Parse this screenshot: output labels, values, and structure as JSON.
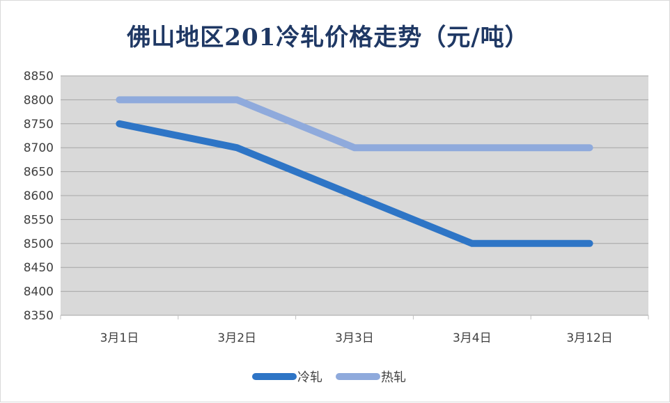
{
  "chart_data": {
    "type": "line",
    "title": "佛山地区201冷轧价格走势（元/吨）",
    "categories": [
      "3月1日",
      "3月2日",
      "3月3日",
      "3月4日",
      "3月12日"
    ],
    "ylim": [
      8350,
      8850
    ],
    "yticks": [
      8850,
      8800,
      8750,
      8700,
      8650,
      8600,
      8550,
      8500,
      8450,
      8400,
      8350
    ],
    "grid": true,
    "legend_position": "bottom",
    "series": [
      {
        "name": "冷轧",
        "values": [
          8750,
          8700,
          8600,
          8500,
          8500
        ],
        "color": "#2e75c6"
      },
      {
        "name": "热轧",
        "values": [
          8800,
          8800,
          8700,
          8700,
          8700
        ],
        "color": "#8faadc"
      }
    ],
    "plot_background": "#d9d9d9"
  }
}
